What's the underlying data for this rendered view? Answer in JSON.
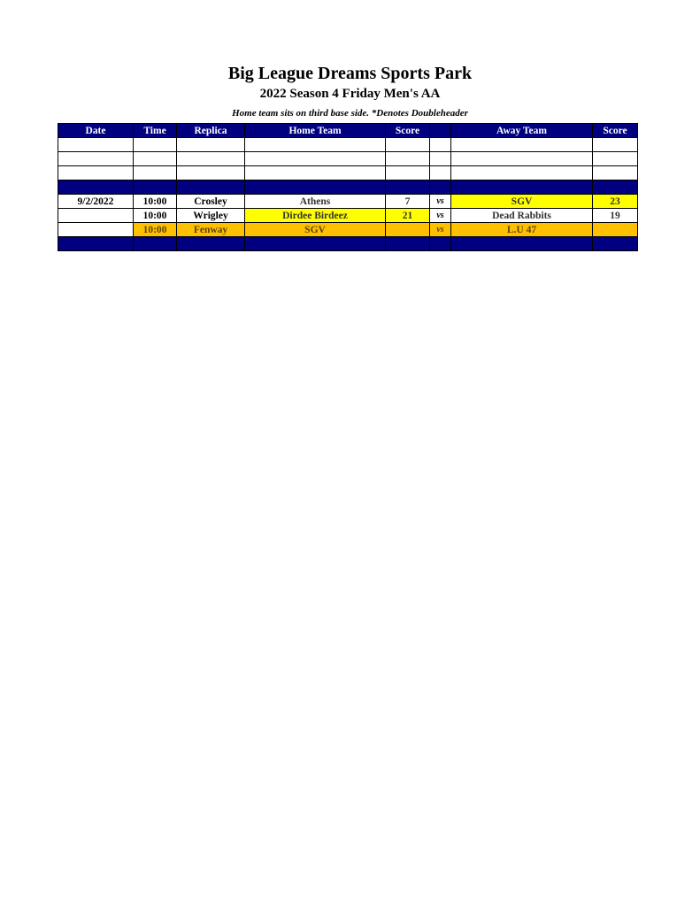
{
  "header": {
    "title": "Big League Dreams Sports Park",
    "subtitle": "2022 Season 4 Friday Men's AA",
    "note": "Home team sits on third base side.  *Denotes Doubleheader"
  },
  "table": {
    "columns": [
      "Date",
      "Time",
      "Replica",
      "Home Team",
      "Score",
      "",
      "Away Team",
      "Score"
    ],
    "games": [
      {
        "date": "9/2/2022",
        "time": "10:00",
        "replica": "Crosley",
        "home": "Athens",
        "home_score": "7",
        "vs": "vs",
        "away": "SGV",
        "away_score": "23"
      },
      {
        "date": "",
        "time": "10:00",
        "replica": "Wrigley",
        "home": "Dirdee Birdeez",
        "home_score": "21",
        "vs": "vs",
        "away": "Dead Rabbits",
        "away_score": "19"
      },
      {
        "date": "",
        "time": "10:00",
        "replica": "Fenway",
        "home": "SGV",
        "home_score": "",
        "vs": "vs",
        "away": "L.U 47",
        "away_score": ""
      }
    ]
  },
  "colors": {
    "navy": "#000080",
    "winner_highlight": "#ffff00",
    "upcoming_highlight": "#ffc000"
  }
}
